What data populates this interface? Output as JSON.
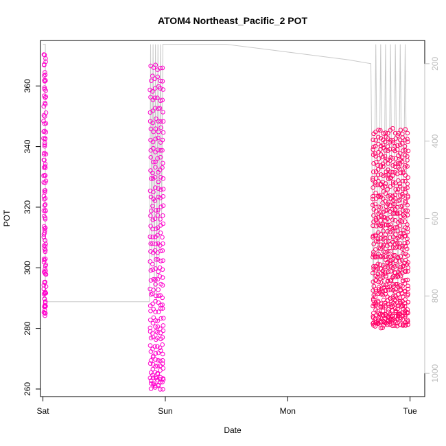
{
  "chart_data": {
    "type": "scatter",
    "title": "ATOM4 Northeast_Pacific_2 POT",
    "xlabel": "Date",
    "ylabel": "POT",
    "x_ticks": [
      "Sat",
      "Sun",
      "Mon",
      "Tue"
    ],
    "x_tick_days": [
      0,
      1,
      2,
      3
    ],
    "xlim_days": [
      -0.02,
      3.12
    ],
    "ylim": [
      257.5,
      375
    ],
    "y_ticks": [
      260,
      280,
      300,
      320,
      340,
      360
    ],
    "y2_label": "",
    "y2_lim": [
      1060,
      140
    ],
    "y2_ticks": [
      200,
      400,
      600,
      800,
      1000
    ],
    "grid": false,
    "colors": {
      "axis": "#000000",
      "secondary_axis": "#bdbdbd",
      "pressure_line": "#c8c8c8",
      "points_early": "#ff00cc",
      "points_late": "#ff0066"
    },
    "series": [
      {
        "role": "pot-profile-1",
        "color": "#ff00cc",
        "x": [
          0.01,
          0.015,
          0.02
        ],
        "pot_min": 285,
        "pot_max": 370
      },
      {
        "role": "pot-profile-2",
        "color": "#ff00cc",
        "x": [
          0.88,
          0.9,
          0.92,
          0.94,
          0.96,
          0.98
        ],
        "pot_min": 260.5,
        "pot_max": 366
      },
      {
        "role": "pot-profiles-3",
        "color": "#ff0066",
        "x": [
          2.7,
          2.72,
          2.74,
          2.76,
          2.78,
          2.8,
          2.82,
          2.84,
          2.86,
          2.88,
          2.9,
          2.92,
          2.94,
          2.96,
          2.98
        ],
        "pot_min": 281,
        "pot_max": 345
      }
    ],
    "pressure_trace": {
      "x": [
        0.0,
        0.02,
        0.02,
        0.3,
        0.6,
        0.87,
        0.88,
        0.89,
        0.9,
        0.91,
        0.92,
        0.93,
        0.94,
        0.95,
        0.96,
        0.97,
        0.98,
        1.5,
        2.0,
        2.5,
        2.68,
        2.7,
        2.72,
        2.74,
        2.76,
        2.78,
        2.8,
        2.82,
        2.84,
        2.86,
        2.88,
        2.9,
        2.92,
        2.94,
        2.96,
        2.98
      ],
      "p": [
        150,
        150,
        815,
        815,
        815,
        815,
        150,
        700,
        150,
        800,
        150,
        815,
        150,
        700,
        150,
        600,
        150,
        150,
        170,
        190,
        200,
        810,
        150,
        760,
        150,
        800,
        150,
        780,
        150,
        820,
        150,
        790,
        150,
        760,
        150,
        740
      ]
    }
  }
}
